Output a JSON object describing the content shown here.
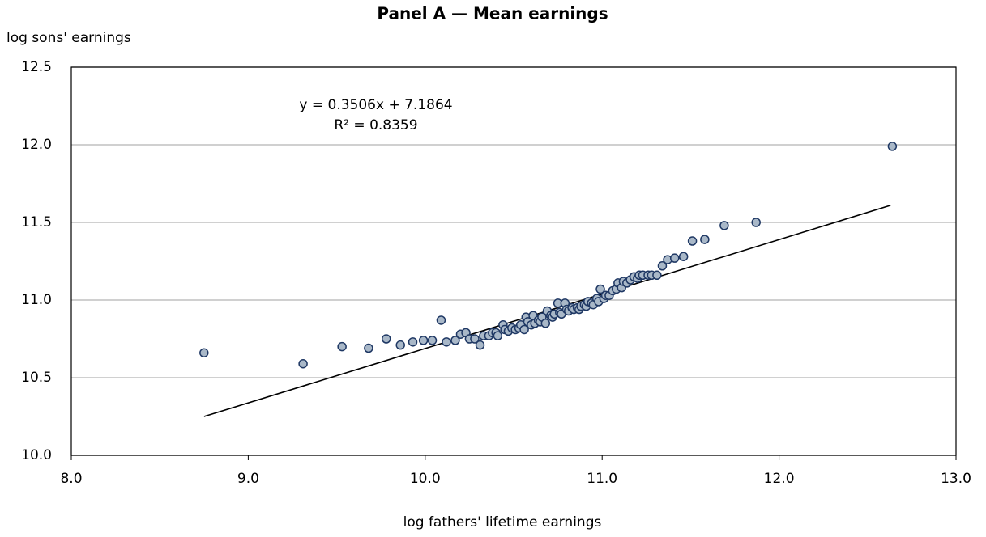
{
  "chart_data": {
    "type": "scatter",
    "title": "Panel A — Mean earnings",
    "y_label": "log sons' earnings",
    "x_label": "log fathers' lifetime earnings",
    "annotations": [
      "y = 0.3506x + 7.1864",
      "R² = 0.8359"
    ],
    "xlim": [
      8,
      13
    ],
    "ylim": [
      10,
      12.5
    ],
    "xticks": [
      {
        "value": 8,
        "label": "8.0"
      },
      {
        "value": 9,
        "label": "9.0"
      },
      {
        "value": 10,
        "label": "10.0"
      },
      {
        "value": 11,
        "label": "11.0"
      },
      {
        "value": 12,
        "label": "12.0"
      },
      {
        "value": 13,
        "label": "13.0"
      }
    ],
    "yticks": [
      {
        "value": 10,
        "label": "10.0"
      },
      10.5,
      {
        "value": 11,
        "label": "11.0"
      },
      11.5,
      {
        "value": 12,
        "label": "12.0"
      },
      12.5
    ],
    "grid": true,
    "color": "#a9b8c8",
    "edge_color": "#1f3864",
    "x": [
      8.75,
      9.31,
      9.53,
      9.68,
      9.78,
      9.86,
      9.93,
      9.99,
      10.04,
      10.09,
      10.12,
      10.17,
      10.2,
      10.23,
      10.25,
      10.28,
      10.31,
      10.33,
      10.36,
      10.38,
      10.4,
      10.41,
      10.44,
      10.45,
      10.47,
      10.49,
      10.51,
      10.53,
      10.54,
      10.56,
      10.57,
      10.58,
      10.6,
      10.61,
      10.62,
      10.64,
      10.65,
      10.66,
      10.68,
      10.69,
      10.71,
      10.72,
      10.73,
      10.75,
      10.76,
      10.77,
      10.79,
      10.8,
      10.81,
      10.83,
      10.84,
      10.86,
      10.87,
      10.88,
      10.9,
      10.91,
      10.92,
      10.94,
      10.95,
      10.97,
      10.98,
      10.99,
      11.01,
      11.02,
      11.04,
      11.06,
      11.08,
      11.09,
      11.11,
      11.12,
      11.14,
      11.16,
      11.18,
      11.2,
      11.21,
      11.23,
      11.26,
      11.28,
      11.31,
      11.34,
      11.37,
      11.41,
      11.46,
      11.51,
      11.58,
      11.69,
      11.87,
      12.64
    ],
    "values": [
      10.66,
      10.59,
      10.7,
      10.69,
      10.75,
      10.71,
      10.73,
      10.74,
      10.74,
      10.87,
      10.73,
      10.74,
      10.78,
      10.79,
      10.75,
      10.75,
      10.71,
      10.77,
      10.77,
      10.79,
      10.79,
      10.77,
      10.84,
      10.81,
      10.8,
      10.82,
      10.81,
      10.82,
      10.84,
      10.81,
      10.89,
      10.86,
      10.84,
      10.9,
      10.85,
      10.87,
      10.86,
      10.89,
      10.85,
      10.93,
      10.9,
      10.89,
      10.91,
      10.98,
      10.92,
      10.91,
      10.98,
      10.94,
      10.93,
      10.95,
      10.94,
      10.95,
      10.94,
      10.96,
      10.97,
      10.96,
      10.99,
      10.98,
      10.97,
      11.01,
      10.99,
      11.07,
      11.01,
      11.03,
      11.03,
      11.06,
      11.07,
      11.11,
      11.08,
      11.12,
      11.11,
      11.13,
      11.15,
      11.14,
      11.16,
      11.16,
      11.16,
      11.16,
      11.16,
      11.22,
      11.26,
      11.27,
      11.28,
      11.38,
      11.39,
      11.48,
      11.5,
      11.99
    ],
    "trendline": {
      "x": [
        8.75,
        12.63
      ],
      "values": [
        10.25,
        11.61
      ],
      "color": "#000000"
    }
  }
}
